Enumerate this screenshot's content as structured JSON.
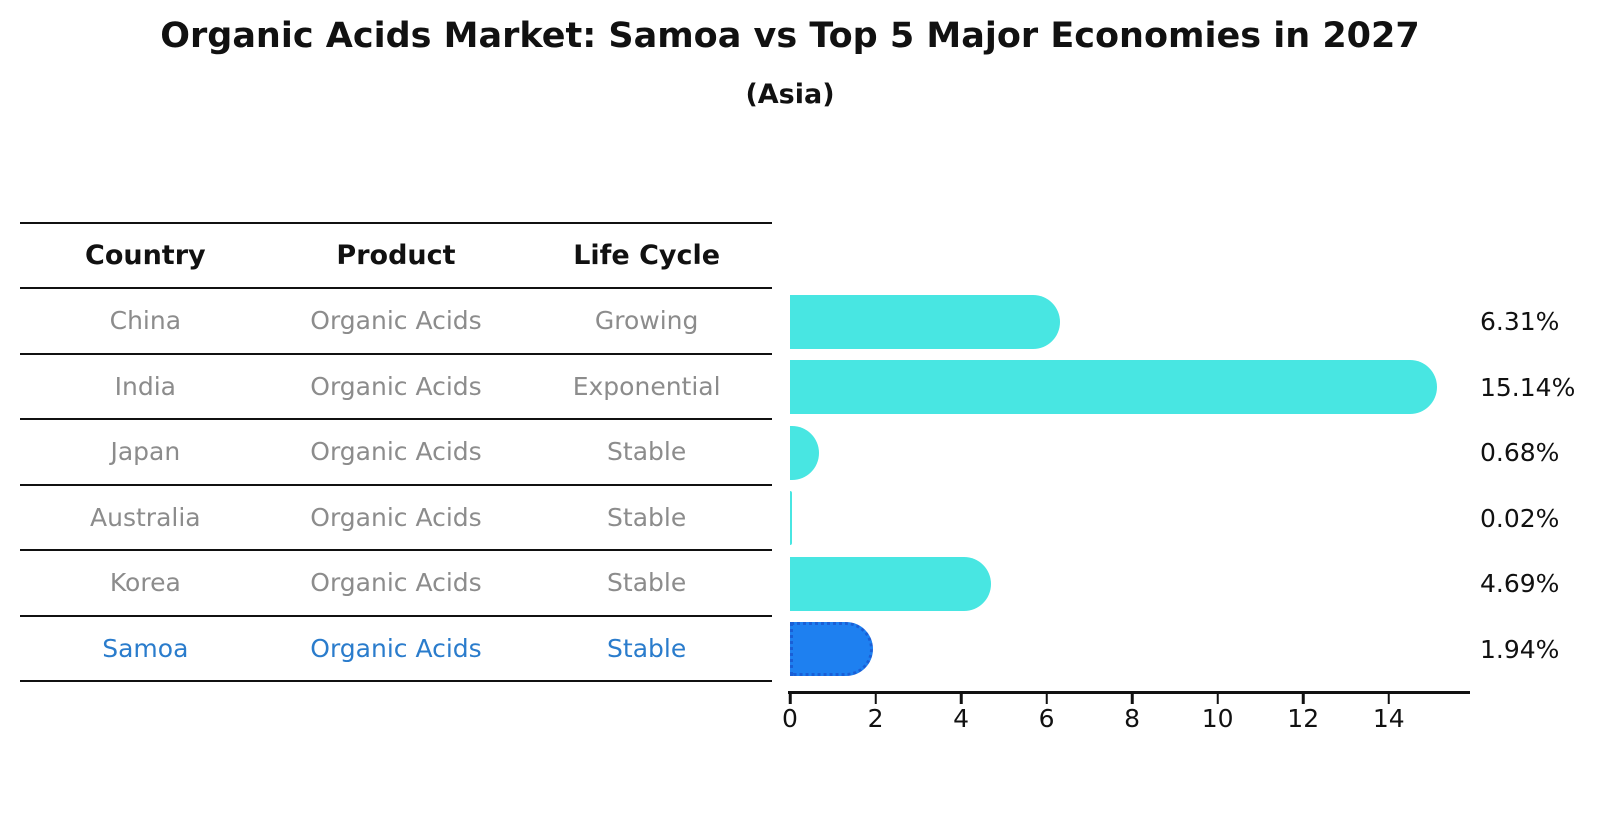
{
  "title": "Organic Acids Market: Samoa vs Top 5 Major Economies in 2027",
  "subtitle": "(Asia)",
  "table": {
    "headers": [
      "Country",
      "Product",
      "Life Cycle"
    ],
    "rows": [
      {
        "country": "China",
        "product": "Organic Acids",
        "life_cycle": "Growing"
      },
      {
        "country": "India",
        "product": "Organic Acids",
        "life_cycle": "Exponential"
      },
      {
        "country": "Japan",
        "product": "Organic Acids",
        "life_cycle": "Stable"
      },
      {
        "country": "Australia",
        "product": "Organic Acids",
        "life_cycle": "Stable"
      },
      {
        "country": "Korea",
        "product": "Organic Acids",
        "life_cycle": "Stable"
      },
      {
        "country": "Samoa",
        "product": "Organic Acids",
        "life_cycle": "Stable"
      }
    ]
  },
  "chart_data": {
    "type": "bar",
    "orientation": "horizontal",
    "title": "Organic Acids Market: Samoa vs Top 5 Major Economies in 2027",
    "subtitle": "(Asia)",
    "categories": [
      "China",
      "India",
      "Japan",
      "Australia",
      "Korea",
      "Samoa"
    ],
    "values": [
      6.31,
      15.14,
      0.68,
      0.02,
      4.69,
      1.94
    ],
    "value_labels": [
      "6.31%",
      "15.14%",
      "0.68%",
      "0.02%",
      "4.69%",
      "1.94%"
    ],
    "x_ticks": [
      0,
      2,
      4,
      6,
      8,
      10,
      12,
      14
    ],
    "x_tick_labels": [
      "0",
      "2",
      "4",
      "6",
      "8",
      "10",
      "12",
      "14"
    ],
    "xlim": [
      0,
      15.9
    ],
    "grid": false,
    "legend": false,
    "highlight_category": "Samoa",
    "colors": {
      "bar_default": "#48e6e2",
      "bar_highlight": "#1e80f0",
      "bar_highlight_border": "#1a5fd6",
      "highlight_text": "#2a7ccc",
      "table_text": "#8c8c8c",
      "axis_text": "#111111"
    }
  }
}
